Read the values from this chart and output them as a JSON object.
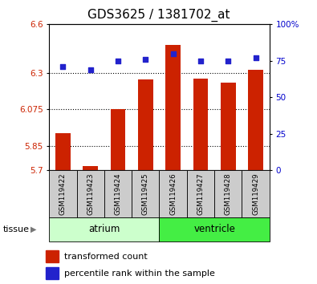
{
  "title": "GDS3625 / 1381702_at",
  "samples": [
    "GSM119422",
    "GSM119423",
    "GSM119424",
    "GSM119425",
    "GSM119426",
    "GSM119427",
    "GSM119428",
    "GSM119429"
  ],
  "bar_values": [
    5.93,
    5.725,
    6.075,
    6.26,
    6.47,
    6.265,
    6.24,
    6.32
  ],
  "percentile_values": [
    71,
    69,
    75,
    76,
    80,
    75,
    75,
    77
  ],
  "bar_color": "#cc2200",
  "dot_color": "#2222cc",
  "ylim_left": [
    5.7,
    6.6
  ],
  "ylim_right": [
    0,
    100
  ],
  "yticks_left": [
    5.7,
    5.85,
    6.075,
    6.3,
    6.6
  ],
  "ytick_labels_left": [
    "5.7",
    "5.85",
    "6.075",
    "6.3",
    "6.6"
  ],
  "yticks_right": [
    0,
    25,
    50,
    75,
    100
  ],
  "ytick_labels_right": [
    "0",
    "25",
    "50",
    "75",
    "100%"
  ],
  "hlines": [
    5.85,
    6.075,
    6.3
  ],
  "tissue_label": "tissue",
  "atrium_label": "atrium",
  "ventricle_label": "ventricle",
  "legend_bar_label": "transformed count",
  "legend_dot_label": "percentile rank within the sample",
  "bar_width": 0.55,
  "tick_label_color_left": "#cc2200",
  "tick_label_color_right": "#0000cc",
  "title_fontsize": 11,
  "axis_fontsize": 7.5,
  "legend_fontsize": 8,
  "atrium_color": "#ccffcc",
  "ventricle_color": "#44ee44",
  "sample_box_color": "#cccccc"
}
